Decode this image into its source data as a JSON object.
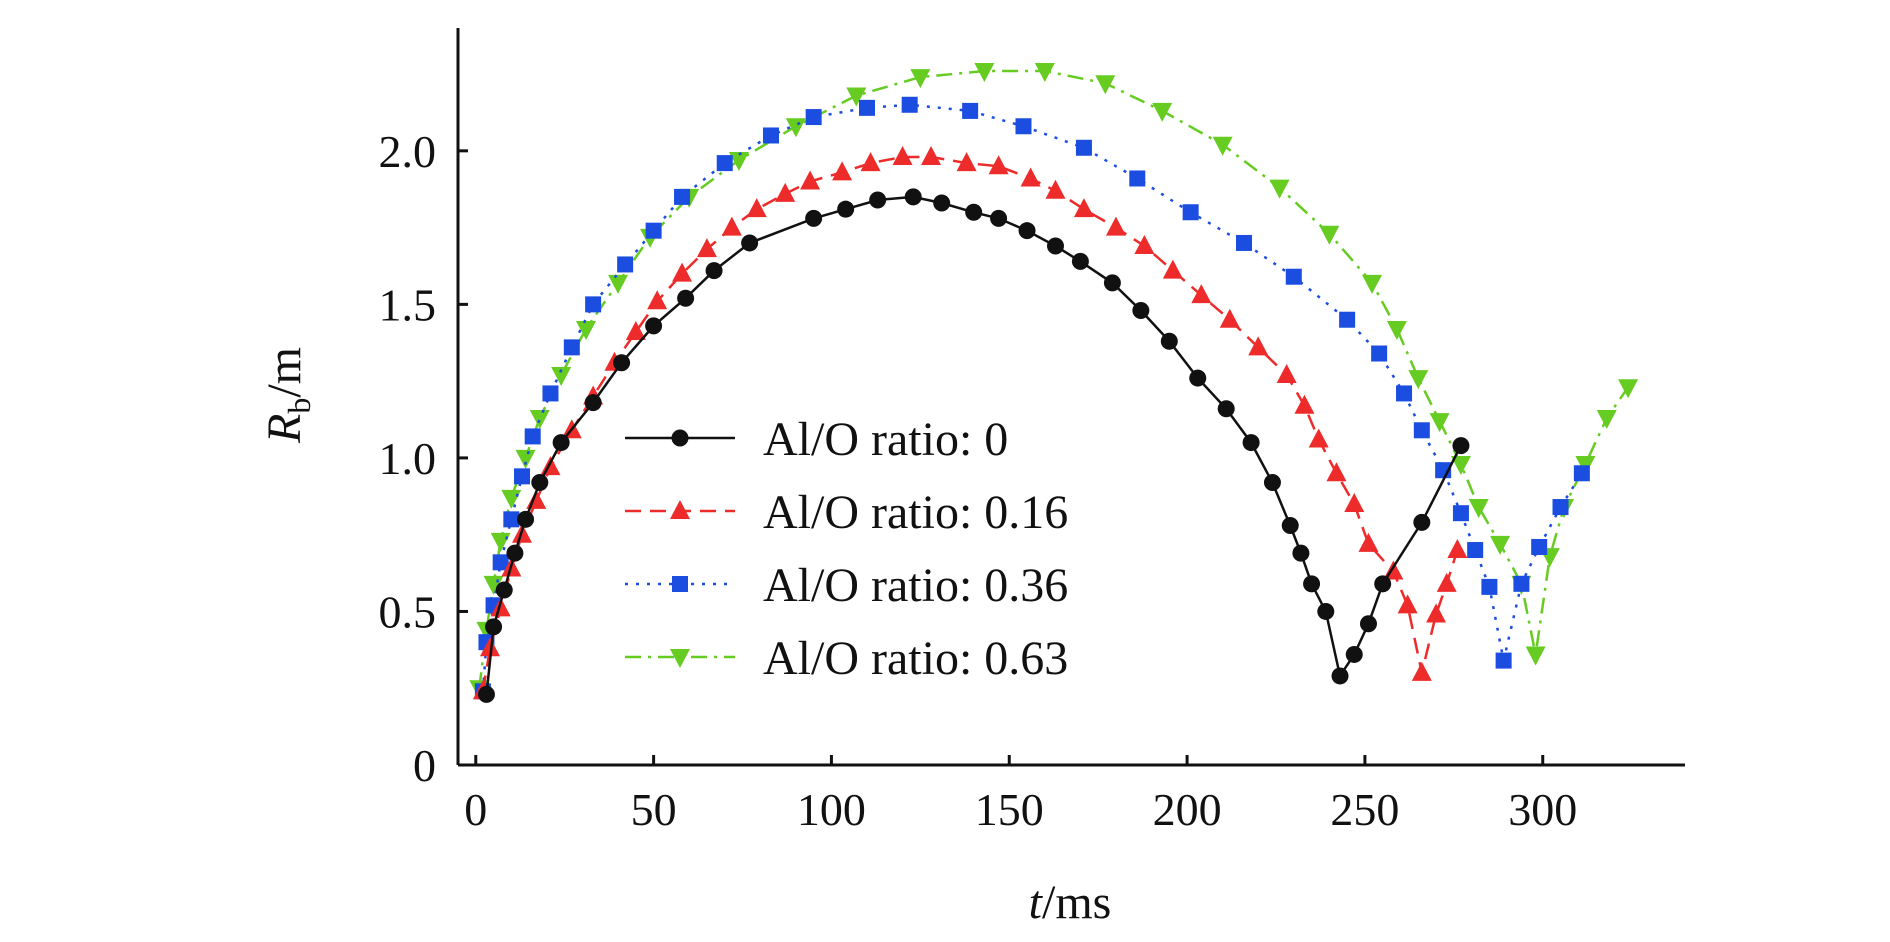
{
  "chart_data": {
    "type": "line",
    "title": "",
    "xlabel": {
      "var": "t",
      "unit": "/ms"
    },
    "ylabel": {
      "var": "R",
      "sub": "b",
      "unit": "/m"
    },
    "xlim": [
      -5,
      340
    ],
    "ylim": [
      0,
      2.4
    ],
    "xticks": [
      0,
      50,
      100,
      150,
      200,
      250,
      300
    ],
    "xtick_labels": [
      "0",
      "50",
      "100",
      "150",
      "200",
      "250",
      "300"
    ],
    "yticks": [
      0,
      0.5,
      1.0,
      1.5,
      2.0
    ],
    "ytick_labels": [
      "0",
      "0.5",
      "1.0",
      "1.5",
      "2.0"
    ],
    "grid": false,
    "legend_position": "center",
    "series": [
      {
        "name": "Al/O ratio: 0",
        "color": "#111111",
        "dash": "solid",
        "marker": "circle",
        "x": [
          3,
          5,
          8,
          11,
          14,
          18,
          24,
          33,
          41,
          50,
          59,
          67,
          77,
          95,
          104,
          113,
          123,
          131,
          140,
          147,
          155,
          163,
          170,
          179,
          187,
          195,
          203,
          211,
          218,
          224,
          229,
          232,
          235,
          239,
          243,
          247,
          251,
          255,
          266,
          277
        ],
        "y": [
          0.23,
          0.45,
          0.57,
          0.69,
          0.8,
          0.92,
          1.05,
          1.18,
          1.31,
          1.43,
          1.52,
          1.61,
          1.7,
          1.78,
          1.81,
          1.84,
          1.85,
          1.83,
          1.8,
          1.78,
          1.74,
          1.69,
          1.64,
          1.57,
          1.48,
          1.38,
          1.26,
          1.16,
          1.05,
          0.92,
          0.78,
          0.69,
          0.59,
          0.5,
          0.29,
          0.36,
          0.46,
          0.59,
          0.79,
          1.04
        ]
      },
      {
        "name": "Al/O ratio: 0.16",
        "color": "#ee2b2b",
        "dash": "dashed",
        "marker": "triangle-up",
        "x": [
          2,
          4,
          7,
          10,
          13,
          17,
          21,
          27,
          33,
          39,
          45,
          51,
          58,
          65,
          72,
          79,
          87,
          94,
          103,
          111,
          120,
          128,
          138,
          147,
          156,
          163,
          171,
          180,
          188,
          196,
          204,
          212,
          220,
          228,
          233,
          237,
          242,
          247,
          251,
          258,
          262,
          266,
          270,
          273,
          276
        ],
        "y": [
          0.24,
          0.38,
          0.51,
          0.64,
          0.75,
          0.86,
          0.97,
          1.09,
          1.2,
          1.31,
          1.41,
          1.51,
          1.6,
          1.68,
          1.75,
          1.81,
          1.86,
          1.9,
          1.93,
          1.96,
          1.98,
          1.98,
          1.96,
          1.95,
          1.91,
          1.87,
          1.81,
          1.75,
          1.69,
          1.61,
          1.53,
          1.45,
          1.36,
          1.27,
          1.17,
          1.06,
          0.95,
          0.85,
          0.72,
          0.63,
          0.52,
          0.3,
          0.49,
          0.59,
          0.7
        ]
      },
      {
        "name": "Al/O ratio: 0.36",
        "color": "#1a4de0",
        "dash": "dotted",
        "marker": "square",
        "x": [
          2,
          3,
          5,
          7,
          10,
          13,
          16,
          21,
          27,
          33,
          42,
          50,
          58,
          70,
          83,
          95,
          110,
          122,
          139,
          154,
          171,
          186,
          201,
          216,
          230,
          245,
          254,
          261,
          266,
          272,
          277,
          281,
          285,
          289,
          294,
          299,
          305,
          311
        ],
        "y": [
          0.24,
          0.4,
          0.52,
          0.66,
          0.8,
          0.94,
          1.07,
          1.21,
          1.36,
          1.5,
          1.63,
          1.74,
          1.85,
          1.96,
          2.05,
          2.11,
          2.14,
          2.15,
          2.13,
          2.08,
          2.01,
          1.91,
          1.8,
          1.7,
          1.59,
          1.45,
          1.34,
          1.21,
          1.09,
          0.96,
          0.82,
          0.7,
          0.58,
          0.34,
          0.59,
          0.71,
          0.84,
          0.95
        ]
      },
      {
        "name": "Al/O ratio: 0.63",
        "color": "#66cc22",
        "dash": "dashdot",
        "marker": "triangle-down",
        "x": [
          1,
          3,
          5,
          7,
          10,
          14,
          18,
          24,
          31,
          40,
          49,
          60,
          74,
          90,
          107,
          125,
          143,
          160,
          177,
          193,
          210,
          226,
          240,
          252,
          259,
          265,
          271,
          277,
          282,
          288,
          294,
          298,
          302,
          306,
          312,
          318,
          324
        ],
        "y": [
          0.25,
          0.44,
          0.59,
          0.73,
          0.87,
          1.0,
          1.13,
          1.27,
          1.42,
          1.57,
          1.72,
          1.85,
          1.97,
          2.08,
          2.18,
          2.24,
          2.26,
          2.26,
          2.22,
          2.13,
          2.02,
          1.88,
          1.73,
          1.57,
          1.42,
          1.26,
          1.12,
          0.98,
          0.84,
          0.72,
          0.59,
          0.36,
          0.68,
          0.84,
          0.98,
          1.13,
          1.23
        ]
      }
    ]
  }
}
